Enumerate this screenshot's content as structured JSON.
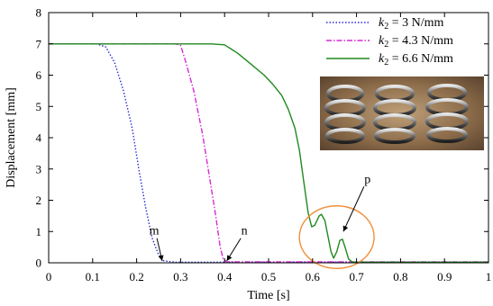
{
  "chart_data": {
    "type": "line",
    "xlabel": "Time [s]",
    "ylabel": "Displacement [mm]",
    "xlim": [
      0,
      1
    ],
    "ylim": [
      0,
      8
    ],
    "xticks": [
      "0",
      "0.1",
      "0.2",
      "0.3",
      "0.4",
      "0.5",
      "0.6",
      "0.7",
      "0.8",
      "0.9",
      "1"
    ],
    "yticks": [
      "0",
      "1",
      "2",
      "3",
      "4",
      "5",
      "6",
      "7",
      "8"
    ],
    "grid": false,
    "legend_position": "top-right",
    "series": [
      {
        "name": "k₂ = 3 N/mm",
        "legend_var": "k",
        "legend_sub": "2",
        "legend_rest": " = 3 N/mm",
        "color": "#2b2bd6",
        "style": "dotted",
        "points": [
          [
            0,
            7
          ],
          [
            0.11,
            7
          ],
          [
            0.13,
            6.9
          ],
          [
            0.15,
            6.4
          ],
          [
            0.17,
            5.5
          ],
          [
            0.19,
            4.3
          ],
          [
            0.205,
            3.0
          ],
          [
            0.22,
            1.8
          ],
          [
            0.235,
            0.8
          ],
          [
            0.25,
            0.25
          ],
          [
            0.26,
            0.07
          ],
          [
            0.275,
            0.04
          ],
          [
            0.29,
            0.02
          ],
          [
            1.0,
            0.02
          ]
        ]
      },
      {
        "name": "k₂ = 4.3 N/mm",
        "legend_var": "k",
        "legend_sub": "2",
        "legend_rest": " = 4.3 N/mm",
        "color": "#d62bd6",
        "style": "dash-dot",
        "points": [
          [
            0,
            7
          ],
          [
            0.29,
            7
          ],
          [
            0.3,
            6.95
          ],
          [
            0.31,
            6.5
          ],
          [
            0.33,
            5.5
          ],
          [
            0.35,
            4.1
          ],
          [
            0.365,
            2.8
          ],
          [
            0.38,
            1.5
          ],
          [
            0.39,
            0.5
          ],
          [
            0.397,
            0.12
          ],
          [
            0.405,
            0.03
          ],
          [
            1.0,
            0.03
          ]
        ]
      },
      {
        "name": "k₂ = 6.6 N/mm",
        "legend_var": "k",
        "legend_sub": "2",
        "legend_rest": " = 6.6 N/mm",
        "color": "#1f8a1f",
        "style": "solid",
        "points": [
          [
            0,
            7
          ],
          [
            0.37,
            7
          ],
          [
            0.4,
            6.97
          ],
          [
            0.43,
            6.7
          ],
          [
            0.46,
            6.35
          ],
          [
            0.49,
            6.0
          ],
          [
            0.51,
            5.7
          ],
          [
            0.53,
            5.35
          ],
          [
            0.545,
            4.9
          ],
          [
            0.56,
            4.3
          ],
          [
            0.57,
            3.6
          ],
          [
            0.58,
            2.6
          ],
          [
            0.59,
            1.6
          ],
          [
            0.598,
            1.15
          ],
          [
            0.605,
            1.2
          ],
          [
            0.615,
            1.5
          ],
          [
            0.62,
            1.55
          ],
          [
            0.628,
            1.35
          ],
          [
            0.635,
            0.85
          ],
          [
            0.642,
            0.35
          ],
          [
            0.648,
            0.15
          ],
          [
            0.655,
            0.35
          ],
          [
            0.662,
            0.72
          ],
          [
            0.668,
            0.75
          ],
          [
            0.675,
            0.45
          ],
          [
            0.682,
            0.12
          ],
          [
            0.69,
            0.03
          ],
          [
            0.7,
            0.02
          ],
          [
            1.0,
            0.02
          ]
        ]
      }
    ],
    "annotations": [
      {
        "text": "m",
        "x": 0.24,
        "y": 0.9,
        "target": [
          0.258,
          0.06
        ]
      },
      {
        "text": "n",
        "x": 0.445,
        "y": 0.9,
        "target": [
          0.405,
          0.06
        ]
      },
      {
        "text": "p",
        "x": 0.725,
        "y": 2.55,
        "target": [
          0.67,
          1.0
        ]
      }
    ],
    "highlight_ellipse": {
      "cx": 0.655,
      "cy": 0.82,
      "rx": 0.085,
      "ry": 1.0,
      "color": "#f0903c"
    },
    "inset_photo": "coil-springs-photo"
  }
}
